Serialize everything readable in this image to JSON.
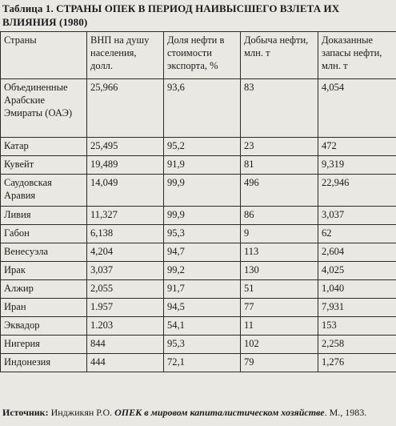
{
  "title": "Таблица 1. СТРАНЫ ОПЕК В ПЕРИОД НАИВЫСШЕГО ВЗЛЕТА ИХ ВЛИЯНИЯ (1980)",
  "headers": [
    "Страны",
    "ВНП на душу населения, долл.",
    "Доля нефти в стоимости экспорта, %",
    "Добыча нефти, млн. т",
    "Доказанные запасы нефти, млн. т"
  ],
  "rows": [
    [
      "Объединенные Арабские Эмираты (ОАЭ)",
      "25,966",
      "93,6",
      "83",
      "4,054"
    ],
    [
      "Катар",
      "25,495",
      "95,2",
      "23",
      "472"
    ],
    [
      "Кувейт",
      "19,489",
      "91,9",
      "81",
      "9,319"
    ],
    [
      "Саудовская Аравия",
      "14,049",
      "99,9",
      "496",
      "22,946"
    ],
    [
      "Ливия",
      "11,327",
      "99,9",
      "86",
      "3,037"
    ],
    [
      "Габон",
      "6,138",
      "95,3",
      "9",
      "62"
    ],
    [
      "Венесуэла",
      "4,204",
      "94,7",
      "113",
      "2,604"
    ],
    [
      "Ирак",
      "3,037",
      "99,2",
      "130",
      "4,025"
    ],
    [
      "Алжир",
      "2,055",
      "91,7",
      "51",
      "1,040"
    ],
    [
      "Иран",
      "1.957",
      "94,5",
      "77",
      "7,931"
    ],
    [
      "Эквадор",
      "1.203",
      "54,1",
      "11",
      "153"
    ],
    [
      "Нигерия",
      "844",
      "95,3",
      "102",
      "2,258"
    ],
    [
      "Индонезия",
      "444",
      "72,1",
      "79",
      "1,276"
    ]
  ],
  "source": {
    "label": "Источник:",
    "author": " Инджикян Р.О. ",
    "book": "ОПЕК в мировом капиталистическом хозяйстве",
    "tail": ". М., 1983."
  }
}
